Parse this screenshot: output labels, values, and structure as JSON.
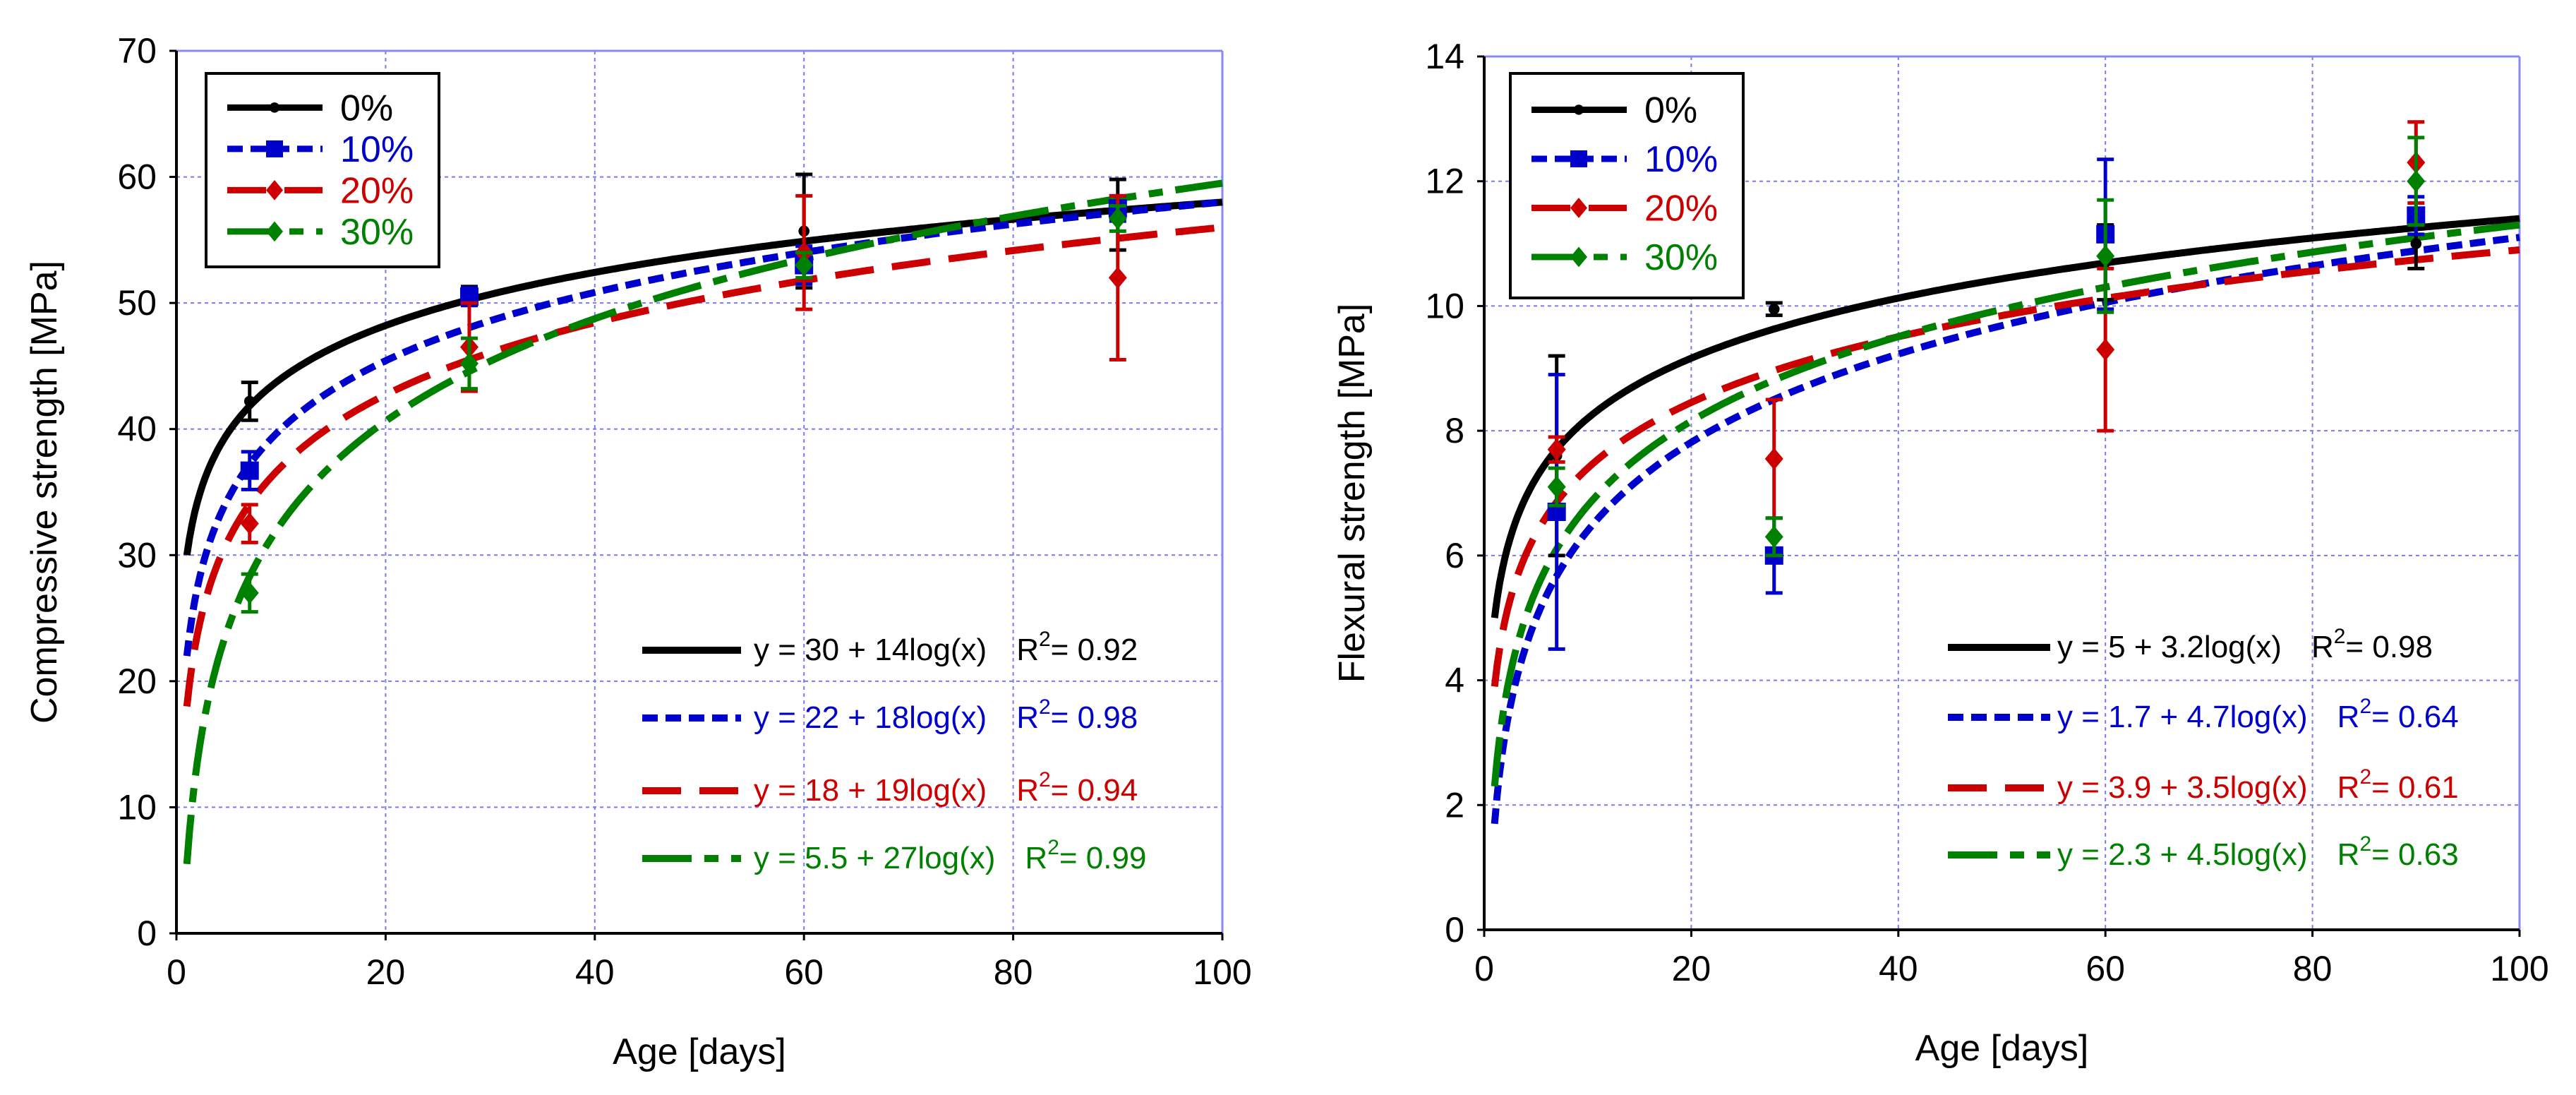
{
  "chart_data": [
    {
      "type": "scatter",
      "id": "compressive",
      "title": "",
      "xlabel": "Age [days]",
      "ylabel": "Compressive strength [MPa]",
      "xlim": [
        0,
        100
      ],
      "ylim": [
        0,
        70
      ],
      "xticks": [
        0,
        20,
        40,
        60,
        80,
        100
      ],
      "yticks": [
        0,
        10,
        20,
        30,
        40,
        50,
        60,
        70
      ],
      "grid": true,
      "legend_position": "top-left",
      "series": [
        {
          "name": "0%",
          "color": "#000000",
          "marker": "circle",
          "dash": "solid",
          "points": [
            {
              "x": 7,
              "y": 42.2,
              "err": 1.5
            },
            {
              "x": 28,
              "y": 50.8,
              "err": 0.5
            },
            {
              "x": 60,
              "y": 55.7,
              "err": 4.5
            },
            {
              "x": 90,
              "y": 57.0,
              "err": 2.8
            }
          ],
          "fit": {
            "a": 30,
            "b": 14,
            "r2": "0.92",
            "equation": "y = 30 + 14log(x)",
            "r2_label": "R",
            "r2_sup": "2",
            "r2_value": "= 0.92"
          }
        },
        {
          "name": "10%",
          "color": "#0000cc",
          "marker": "square",
          "dash": "short",
          "points": [
            {
              "x": 7,
              "y": 36.7,
              "err": 1.5
            },
            {
              "x": 28,
              "y": 50.5,
              "err": 0.7
            },
            {
              "x": 60,
              "y": 53.0,
              "err": 1.5
            },
            {
              "x": 90,
              "y": 57.5,
              "err": 1.0
            }
          ],
          "fit": {
            "a": 22,
            "b": 18,
            "r2": "0.98",
            "equation": "y = 22 + 18log(x)",
            "r2_label": "R",
            "r2_sup": "2",
            "r2_value": "= 0.98"
          }
        },
        {
          "name": "20%",
          "color": "#cc0000",
          "marker": "diamond",
          "dash": "long",
          "points": [
            {
              "x": 7,
              "y": 32.5,
              "err": 1.5
            },
            {
              "x": 28,
              "y": 46.5,
              "err": 3.5
            },
            {
              "x": 60,
              "y": 54.0,
              "err": 4.5
            },
            {
              "x": 90,
              "y": 52.0,
              "err": 6.5
            }
          ],
          "fit": {
            "a": 18,
            "b": 19,
            "r2": "0.94",
            "equation": "y = 18 + 19log(x)",
            "r2_label": "R",
            "r2_sup": "2",
            "r2_value": "= 0.94"
          }
        },
        {
          "name": "30%",
          "color": "#008000",
          "marker": "diamond",
          "dash": "dashdot",
          "points": [
            {
              "x": 7,
              "y": 27.0,
              "err": 1.5
            },
            {
              "x": 28,
              "y": 45.2,
              "err": 2.0
            },
            {
              "x": 60,
              "y": 53.0,
              "err": 1.0
            },
            {
              "x": 90,
              "y": 56.7,
              "err": 1.0
            }
          ],
          "fit": {
            "a": 5.5,
            "b": 27,
            "r2": "0.99",
            "equation": "y = 5.5 + 27log(x)",
            "r2_label": "R",
            "r2_sup": "2",
            "r2_value": "= 0.99"
          }
        }
      ]
    },
    {
      "type": "scatter",
      "id": "flexural",
      "title": "",
      "xlabel": "Age [days]",
      "ylabel": "Flexural strength [MPa]",
      "xlim": [
        0,
        100
      ],
      "ylim": [
        0,
        14
      ],
      "xticks": [
        0,
        20,
        40,
        60,
        80,
        100
      ],
      "yticks": [
        0,
        2,
        4,
        6,
        8,
        10,
        12,
        14
      ],
      "grid": true,
      "legend_position": "top-left",
      "series": [
        {
          "name": "0%",
          "color": "#000000",
          "marker": "circle",
          "dash": "solid",
          "points": [
            {
              "x": 7,
              "y": 7.6,
              "err": 1.6
            },
            {
              "x": 28,
              "y": 9.95,
              "err": 0.1
            },
            {
              "x": 60,
              "y": 10.7,
              "err": 0.6
            },
            {
              "x": 90,
              "y": 11.0,
              "err": 0.4
            }
          ],
          "fit": {
            "a": 5,
            "b": 3.2,
            "r2": "0.98",
            "equation": "y = 5 + 3.2log(x)",
            "r2_label": "R",
            "r2_sup": "2",
            "r2_value": "= 0.98"
          }
        },
        {
          "name": "10%",
          "color": "#0000cc",
          "marker": "square",
          "dash": "short",
          "points": [
            {
              "x": 7,
              "y": 6.7,
              "err": 2.2
            },
            {
              "x": 28,
              "y": 6.0,
              "err": 0.6
            },
            {
              "x": 60,
              "y": 11.15,
              "err": 1.2
            },
            {
              "x": 90,
              "y": 11.45,
              "err": 0.3
            }
          ],
          "fit": {
            "a": 1.7,
            "b": 4.7,
            "r2": "0.64",
            "equation": "y = 1.7 + 4.7log(x)",
            "r2_label": "R",
            "r2_sup": "2",
            "r2_value": "= 0.64"
          }
        },
        {
          "name": "20%",
          "color": "#cc0000",
          "marker": "diamond",
          "dash": "long",
          "points": [
            {
              "x": 7,
              "y": 7.7,
              "err": 0.2
            },
            {
              "x": 28,
              "y": 7.55,
              "err": 0.95
            },
            {
              "x": 60,
              "y": 9.3,
              "err": 1.3
            },
            {
              "x": 90,
              "y": 12.3,
              "err": 0.65
            }
          ],
          "fit": {
            "a": 3.9,
            "b": 3.5,
            "r2": "0.61",
            "equation": "y = 3.9 + 3.5log(x)",
            "r2_label": "R",
            "r2_sup": "2",
            "r2_value": "= 0.61"
          }
        },
        {
          "name": "30%",
          "color": "#008000",
          "marker": "diamond",
          "dash": "dashdot",
          "points": [
            {
              "x": 7,
              "y": 7.1,
              "err": 0.3
            },
            {
              "x": 28,
              "y": 6.3,
              "err": 0.3
            },
            {
              "x": 60,
              "y": 10.8,
              "err": 0.9
            },
            {
              "x": 90,
              "y": 12.0,
              "err": 0.7
            }
          ],
          "fit": {
            "a": 2.3,
            "b": 4.5,
            "r2": "0.63",
            "equation": "y = 2.3 + 4.5log(x)",
            "r2_label": "R",
            "r2_sup": "2",
            "r2_value": "= 0.63"
          }
        }
      ]
    }
  ]
}
